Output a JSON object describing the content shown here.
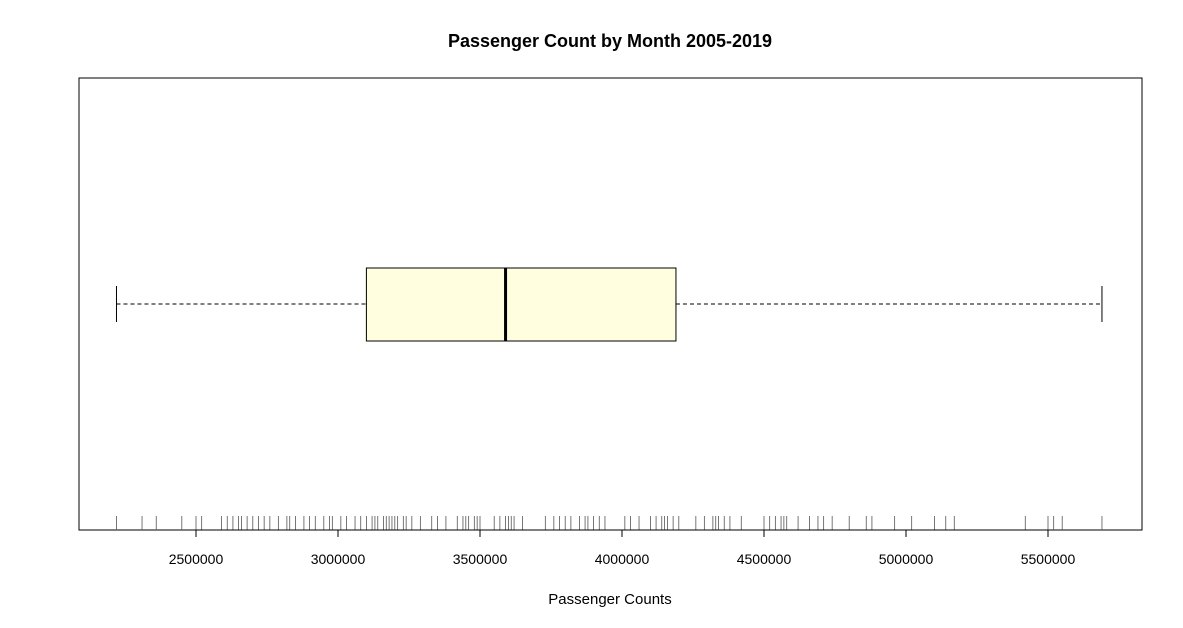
{
  "chart_data": {
    "type": "boxplot",
    "orientation": "horizontal",
    "title": "Passenger Count by Month 2005-2019",
    "xlabel": "Passenger Counts",
    "ylabel": "",
    "xlim": [
      2000000,
      5800000
    ],
    "x_ticks": [
      2500000,
      3000000,
      3500000,
      4000000,
      4500000,
      5000000,
      5500000
    ],
    "x_tick_labels": [
      "2500000",
      "3000000",
      "3500000",
      "4000000",
      "4500000",
      "5000000",
      "5500000"
    ],
    "box": {
      "min": 2220000,
      "q1": 3100000,
      "median": 3590000,
      "q3": 4190000,
      "max": 5690000
    },
    "box_fill": "#ffffe0",
    "rug": [
      2220000,
      2310000,
      2360000,
      2450000,
      2500000,
      2520000,
      2590000,
      2610000,
      2630000,
      2650000,
      2660000,
      2680000,
      2700000,
      2720000,
      2740000,
      2760000,
      2790000,
      2820000,
      2830000,
      2850000,
      2880000,
      2900000,
      2920000,
      2950000,
      2970000,
      2980000,
      3010000,
      3030000,
      3060000,
      3080000,
      3100000,
      3120000,
      3130000,
      3140000,
      3160000,
      3170000,
      3180000,
      3190000,
      3200000,
      3210000,
      3230000,
      3240000,
      3260000,
      3290000,
      3330000,
      3350000,
      3380000,
      3420000,
      3440000,
      3450000,
      3460000,
      3480000,
      3490000,
      3500000,
      3550000,
      3570000,
      3590000,
      3600000,
      3610000,
      3620000,
      3650000,
      3730000,
      3760000,
      3780000,
      3800000,
      3820000,
      3850000,
      3870000,
      3880000,
      3900000,
      3920000,
      3940000,
      4010000,
      4030000,
      4060000,
      4100000,
      4120000,
      4140000,
      4150000,
      4160000,
      4180000,
      4200000,
      4260000,
      4290000,
      4320000,
      4330000,
      4340000,
      4360000,
      4380000,
      4420000,
      4500000,
      4520000,
      4540000,
      4560000,
      4570000,
      4580000,
      4620000,
      4660000,
      4690000,
      4710000,
      4740000,
      4800000,
      4860000,
      4880000,
      4960000,
      5020000,
      5100000,
      5140000,
      5170000,
      5420000,
      5500000,
      5520000,
      5550000,
      5690000
    ]
  }
}
